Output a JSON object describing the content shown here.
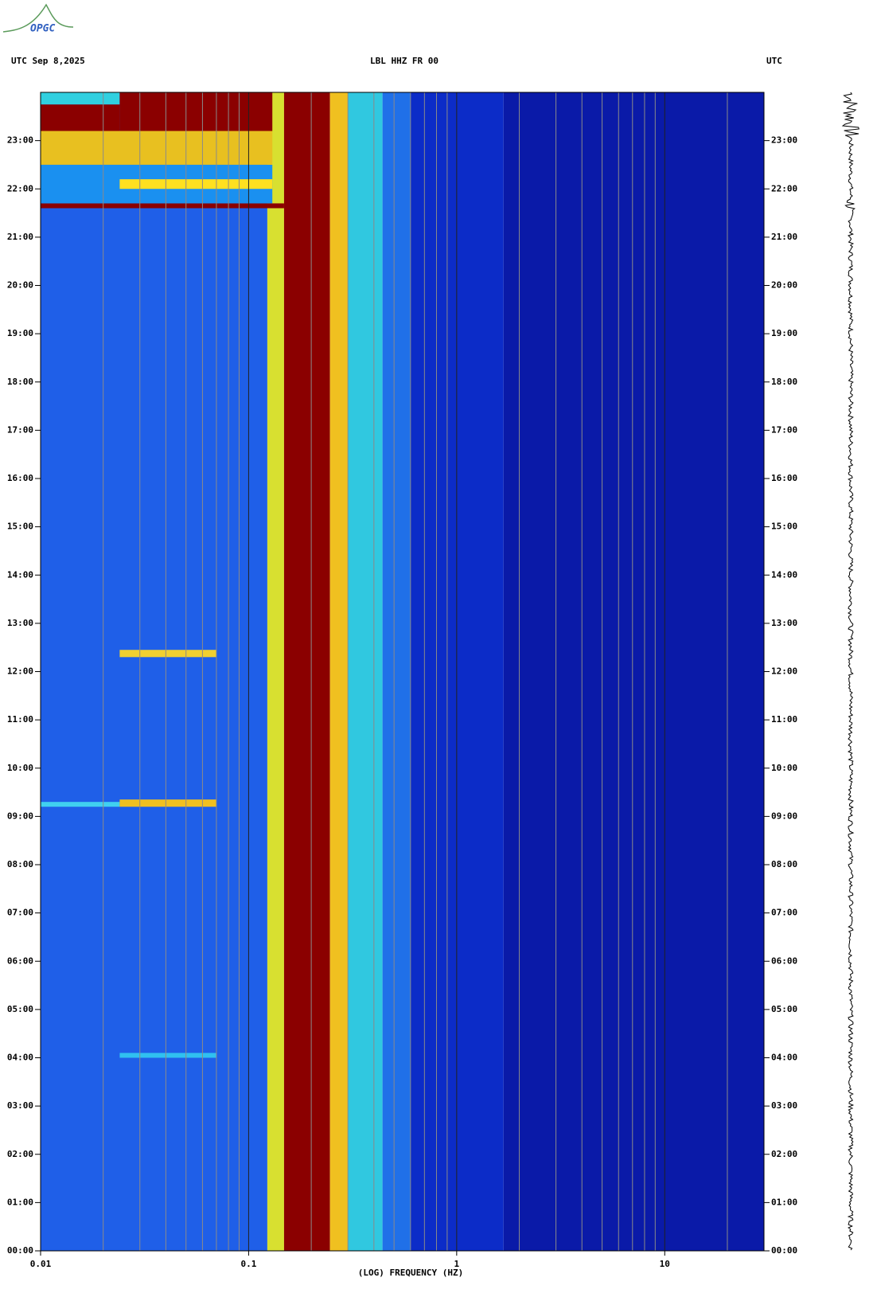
{
  "logo": "OPGC",
  "chart_data": {
    "type": "spectrogram",
    "title": "LBL HHZ FR 00",
    "date_label": "UTC  Sep 8,2025",
    "right_label": "UTC",
    "x_label": "(LOG) FREQUENCY (HZ)",
    "x_scale": "log",
    "xlim": [
      0.01,
      30
    ],
    "xticks": [
      0.01,
      0.1,
      1,
      10
    ],
    "x_minor_grid": [
      0.02,
      0.03,
      0.04,
      0.05,
      0.06,
      0.07,
      0.08,
      0.09,
      0.2,
      0.3,
      0.4,
      0.5,
      0.6,
      0.7,
      0.8,
      0.9,
      2,
      3,
      4,
      5,
      6,
      7,
      8,
      9,
      20
    ],
    "ylim": [
      0,
      24
    ],
    "yticks": [
      {
        "value": 0,
        "label": "00:00"
      },
      {
        "value": 1,
        "label": "01:00"
      },
      {
        "value": 2,
        "label": "02:00"
      },
      {
        "value": 3,
        "label": "03:00"
      },
      {
        "value": 4,
        "label": "04:00"
      },
      {
        "value": 5,
        "label": "05:00"
      },
      {
        "value": 6,
        "label": "06:00"
      },
      {
        "value": 7,
        "label": "07:00"
      },
      {
        "value": 8,
        "label": "08:00"
      },
      {
        "value": 9,
        "label": "09:00"
      },
      {
        "value": 10,
        "label": "10:00"
      },
      {
        "value": 11,
        "label": "11:00"
      },
      {
        "value": 12,
        "label": "12:00"
      },
      {
        "value": 13,
        "label": "13:00"
      },
      {
        "value": 14,
        "label": "14:00"
      },
      {
        "value": 15,
        "label": "15:00"
      },
      {
        "value": 16,
        "label": "16:00"
      },
      {
        "value": 17,
        "label": "17:00"
      },
      {
        "value": 18,
        "label": "18:00"
      },
      {
        "value": 19,
        "label": "19:00"
      },
      {
        "value": 20,
        "label": "20:00"
      },
      {
        "value": 21,
        "label": "21:00"
      },
      {
        "value": 22,
        "label": "22:00"
      },
      {
        "value": 23,
        "label": "23:00"
      }
    ],
    "cells": [
      {
        "f0": 0.01,
        "f1": 0.123,
        "t0": 0,
        "t1": 24,
        "color": "#1f5fe8"
      },
      {
        "f0": 0.123,
        "f1": 0.148,
        "t0": 0,
        "t1": 24,
        "color": "#d8e030"
      },
      {
        "f0": 0.148,
        "f1": 0.246,
        "t0": 0,
        "t1": 24,
        "color": "#8b0000"
      },
      {
        "f0": 0.246,
        "f1": 0.3,
        "t0": 0,
        "t1": 24,
        "color": "#f0c020"
      },
      {
        "f0": 0.3,
        "f1": 0.44,
        "t0": 0,
        "t1": 24,
        "color": "#30c8e0"
      },
      {
        "f0": 0.44,
        "f1": 0.6,
        "t0": 0,
        "t1": 24,
        "color": "#2070e8"
      },
      {
        "f0": 0.6,
        "f1": 1.68,
        "t0": 0,
        "t1": 24,
        "color": "#0c2cc8"
      },
      {
        "f0": 1.68,
        "f1": 30,
        "t0": 0,
        "t1": 24,
        "color": "#0a1aa8"
      },
      {
        "f0": 0.01,
        "f1": 0.148,
        "t0": 21.6,
        "t1": 21.7,
        "color": "#8b0000"
      },
      {
        "f0": 0.01,
        "f1": 0.13,
        "t0": 21.7,
        "t1": 22.5,
        "color": "#1a90f0"
      },
      {
        "f0": 0.024,
        "f1": 0.13,
        "t0": 22,
        "t1": 22.2,
        "color": "#ffe020"
      },
      {
        "f0": 0.01,
        "f1": 0.13,
        "t0": 22.5,
        "t1": 23.2,
        "color": "#e8c020"
      },
      {
        "f0": 0.01,
        "f1": 0.024,
        "t0": 23.2,
        "t1": 23.75,
        "color": "#8b0000"
      },
      {
        "f0": 0.01,
        "f1": 0.024,
        "t0": 23.75,
        "t1": 24,
        "color": "#30d0e0"
      },
      {
        "f0": 0.024,
        "f1": 0.13,
        "t0": 23.2,
        "t1": 24,
        "color": "#8b0000"
      },
      {
        "f0": 0.024,
        "f1": 0.07,
        "t0": 12.3,
        "t1": 12.45,
        "color": "#f0d030"
      },
      {
        "f0": 0.01,
        "f1": 0.024,
        "t0": 9.2,
        "t1": 9.3,
        "color": "#40d0f0"
      },
      {
        "f0": 0.024,
        "f1": 0.07,
        "t0": 9.2,
        "t1": 9.35,
        "color": "#f0c020"
      },
      {
        "f0": 0.024,
        "f1": 0.07,
        "t0": 4,
        "t1": 4.1,
        "color": "#30c0f0"
      }
    ]
  }
}
